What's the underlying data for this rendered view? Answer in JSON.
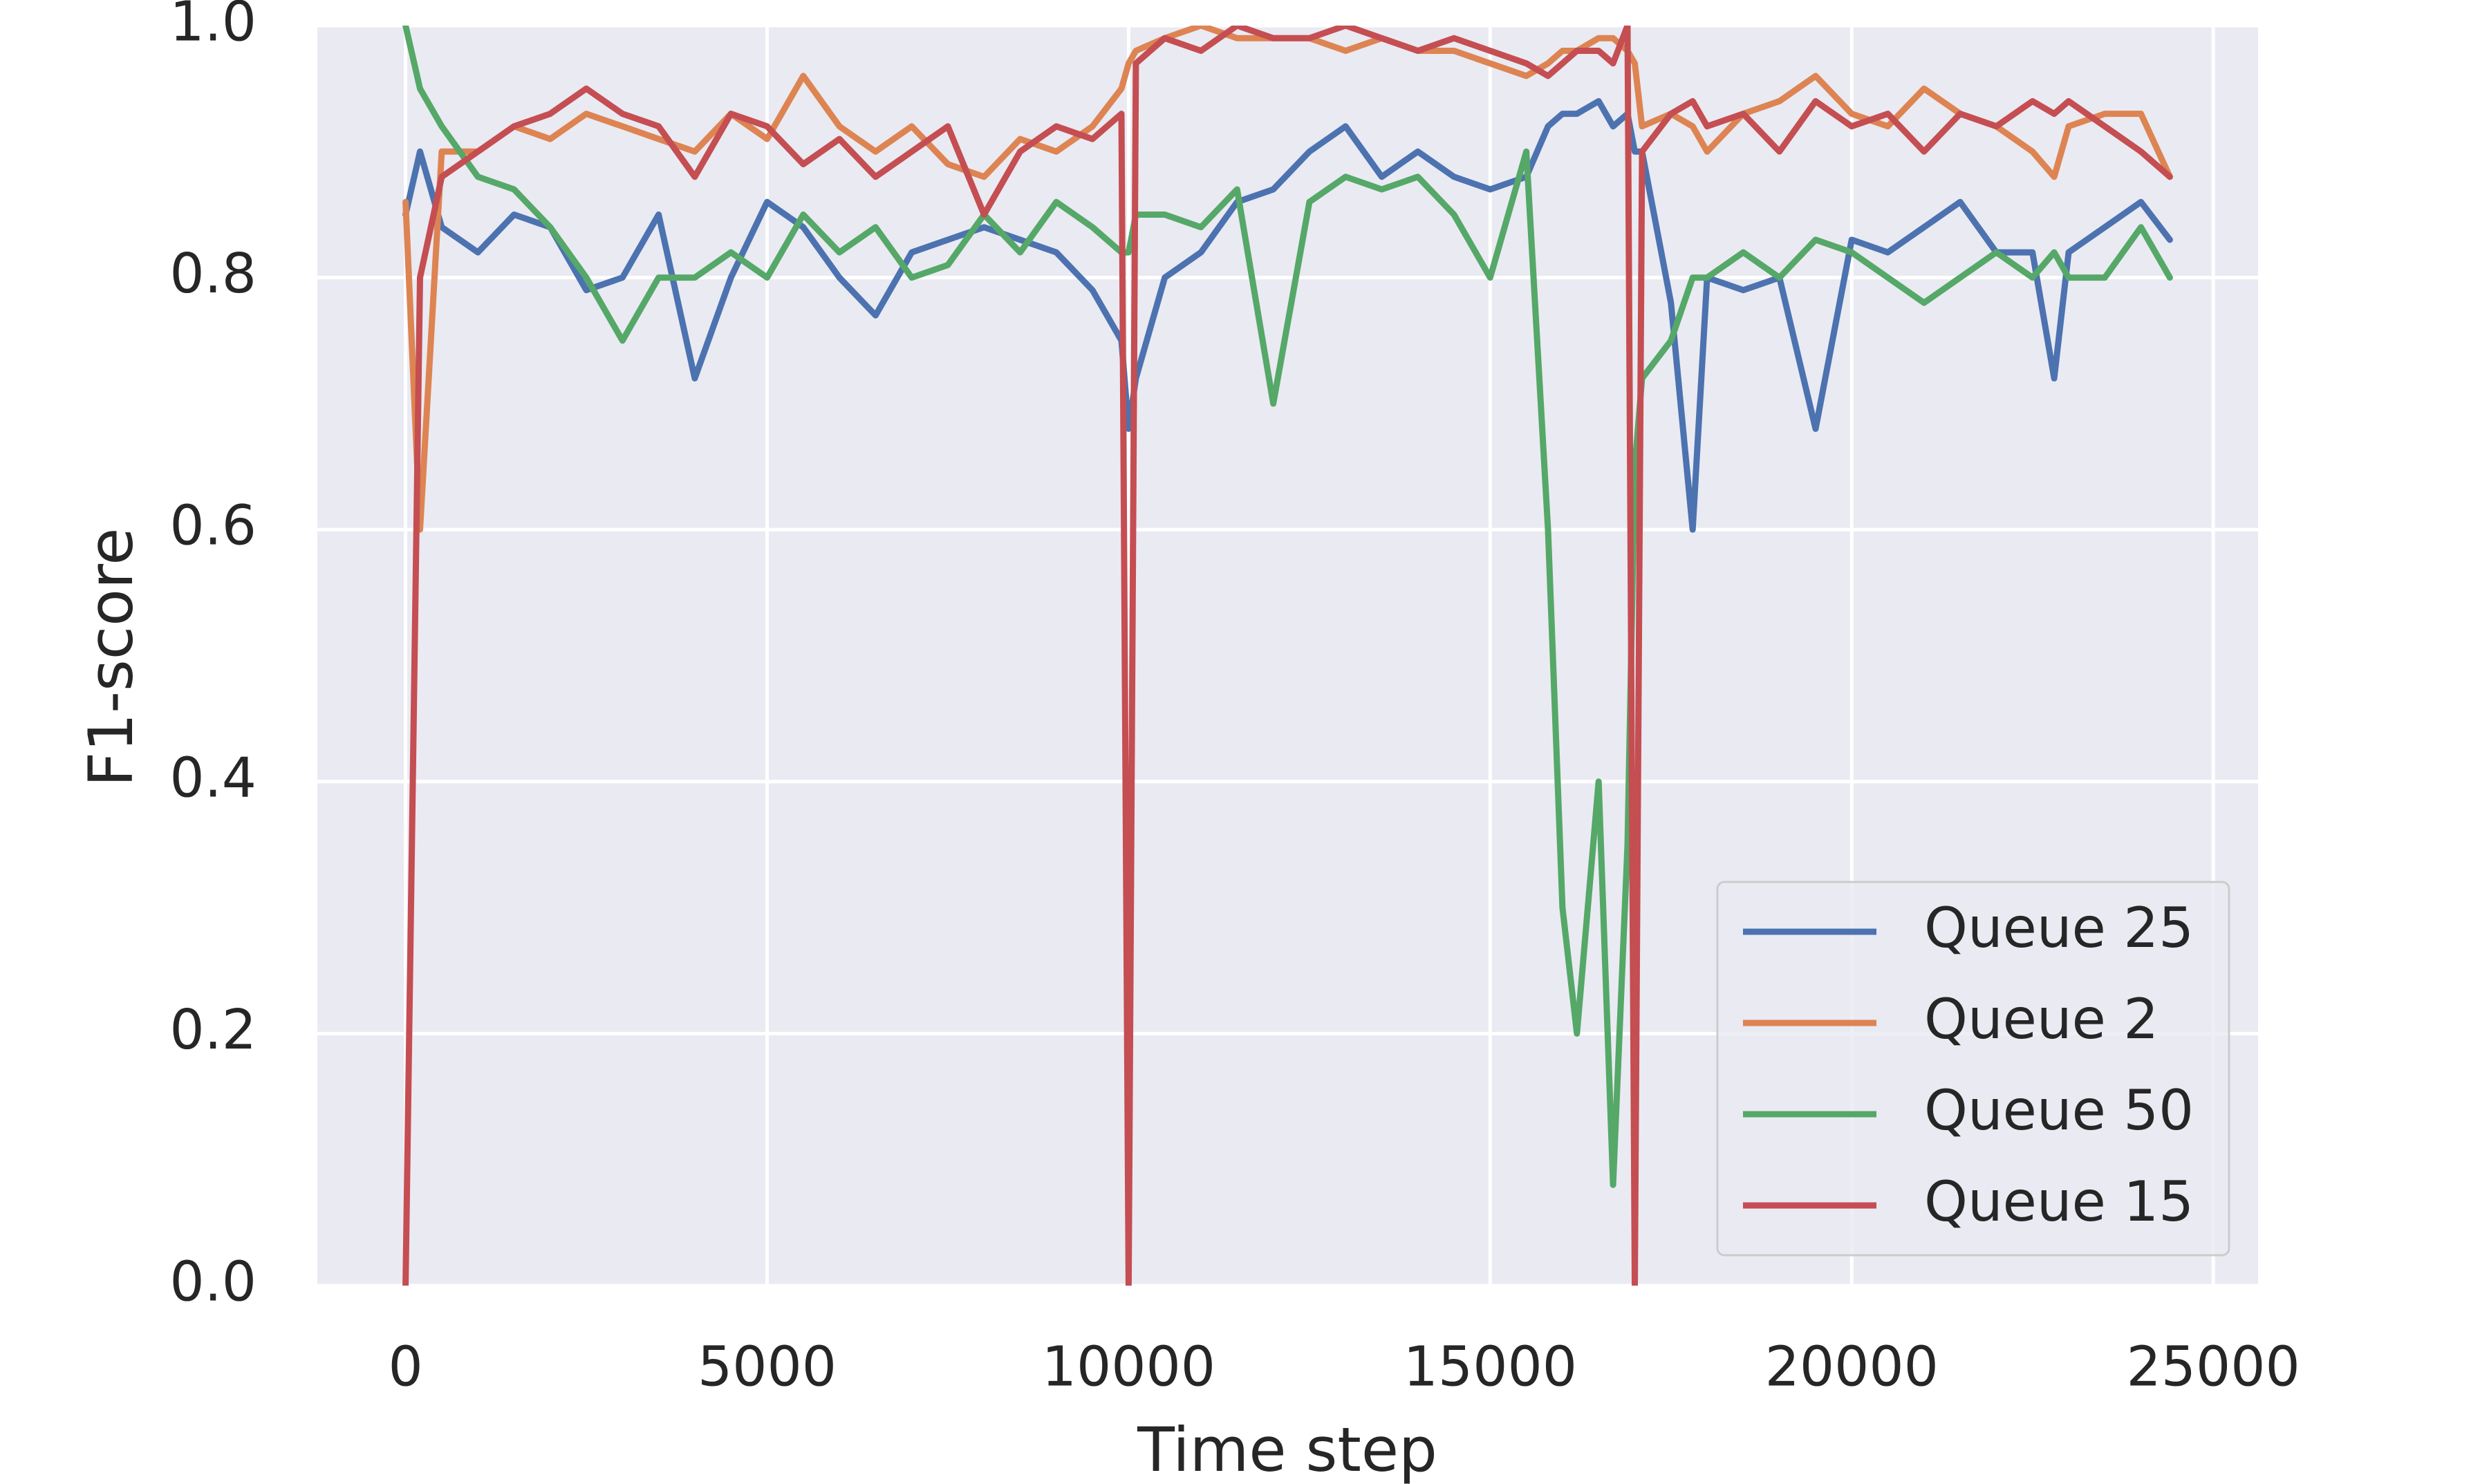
{
  "chart_data": {
    "type": "line",
    "x_label": "Time step",
    "y_label": "F1-score",
    "x": [
      0,
      200,
      500,
      1000,
      1500,
      2000,
      2500,
      3000,
      3500,
      4000,
      4500,
      5000,
      5500,
      6000,
      6500,
      7000,
      7500,
      8000,
      8500,
      9000,
      9500,
      9900,
      10000,
      10100,
      10500,
      11000,
      11500,
      12000,
      12500,
      13000,
      13500,
      14000,
      14500,
      15000,
      15500,
      15800,
      16000,
      16200,
      16500,
      16700,
      16900,
      17000,
      17100,
      17500,
      17800,
      18000,
      18500,
      19000,
      19500,
      20000,
      20500,
      21000,
      21500,
      22000,
      22500,
      22800,
      23000,
      23500,
      24000,
      24400
    ],
    "series": [
      {
        "name": "Queue 25",
        "color": "#4c72b0",
        "values": [
          0.85,
          0.9,
          0.84,
          0.82,
          0.85,
          0.84,
          0.79,
          0.8,
          0.85,
          0.72,
          0.8,
          0.86,
          0.84,
          0.8,
          0.77,
          0.82,
          0.83,
          0.84,
          0.83,
          0.82,
          0.79,
          0.75,
          0.68,
          0.72,
          0.8,
          0.82,
          0.86,
          0.87,
          0.9,
          0.92,
          0.88,
          0.9,
          0.88,
          0.87,
          0.88,
          0.92,
          0.93,
          0.93,
          0.94,
          0.92,
          0.93,
          0.9,
          0.9,
          0.78,
          0.6,
          0.8,
          0.79,
          0.8,
          0.68,
          0.83,
          0.82,
          0.84,
          0.86,
          0.82,
          0.82,
          0.72,
          0.82,
          0.84,
          0.86,
          0.83
        ]
      },
      {
        "name": "Queue 2",
        "color": "#dd8452",
        "values": [
          0.86,
          0.6,
          0.9,
          0.9,
          0.92,
          0.91,
          0.93,
          0.92,
          0.91,
          0.9,
          0.93,
          0.91,
          0.96,
          0.92,
          0.9,
          0.92,
          0.89,
          0.88,
          0.91,
          0.9,
          0.92,
          0.95,
          0.97,
          0.98,
          0.99,
          1.0,
          0.99,
          0.99,
          0.99,
          0.98,
          0.99,
          0.98,
          0.98,
          0.97,
          0.96,
          0.97,
          0.98,
          0.98,
          0.99,
          0.99,
          0.98,
          0.97,
          0.92,
          0.93,
          0.92,
          0.9,
          0.93,
          0.94,
          0.96,
          0.93,
          0.92,
          0.95,
          0.93,
          0.92,
          0.9,
          0.88,
          0.92,
          0.93,
          0.93,
          0.88
        ]
      },
      {
        "name": "Queue 50",
        "color": "#55a868",
        "values": [
          1.0,
          0.95,
          0.92,
          0.88,
          0.87,
          0.84,
          0.8,
          0.75,
          0.8,
          0.8,
          0.82,
          0.8,
          0.85,
          0.82,
          0.84,
          0.8,
          0.81,
          0.85,
          0.82,
          0.86,
          0.84,
          0.82,
          0.82,
          0.85,
          0.85,
          0.84,
          0.87,
          0.7,
          0.86,
          0.88,
          0.87,
          0.88,
          0.85,
          0.8,
          0.9,
          0.6,
          0.3,
          0.2,
          0.4,
          0.08,
          0.35,
          0.65,
          0.72,
          0.75,
          0.8,
          0.8,
          0.82,
          0.8,
          0.83,
          0.82,
          0.8,
          0.78,
          0.8,
          0.82,
          0.8,
          0.82,
          0.8,
          0.8,
          0.84,
          0.8
        ]
      },
      {
        "name": "Queue 15",
        "color": "#c44e52",
        "values": [
          0.0,
          0.8,
          0.88,
          0.9,
          0.92,
          0.93,
          0.95,
          0.93,
          0.92,
          0.88,
          0.93,
          0.92,
          0.89,
          0.91,
          0.88,
          0.9,
          0.92,
          0.85,
          0.9,
          0.92,
          0.91,
          0.93,
          0.0,
          0.97,
          0.99,
          0.98,
          1.0,
          0.99,
          0.99,
          1.0,
          0.99,
          0.98,
          0.99,
          0.98,
          0.97,
          0.96,
          0.97,
          0.98,
          0.98,
          0.97,
          1.0,
          0.0,
          0.9,
          0.93,
          0.94,
          0.92,
          0.93,
          0.9,
          0.94,
          0.92,
          0.93,
          0.9,
          0.93,
          0.92,
          0.94,
          0.93,
          0.94,
          0.92,
          0.9,
          0.88
        ]
      }
    ],
    "xlim": [
      -1220,
      25620
    ],
    "ylim": [
      0,
      1
    ],
    "xticks": [
      0,
      5000,
      10000,
      15000,
      20000,
      25000
    ],
    "yticks": [
      {
        "value": 0,
        "label": "0.0"
      },
      {
        "value": 0.2,
        "label": "0.2"
      },
      {
        "value": 0.4,
        "label": "0.4"
      },
      {
        "value": 0.6,
        "label": "0.6"
      },
      {
        "value": 0.8,
        "label": "0.8"
      },
      {
        "value": 1,
        "label": "1.0"
      }
    ],
    "grid": true,
    "legend": "lower right"
  }
}
